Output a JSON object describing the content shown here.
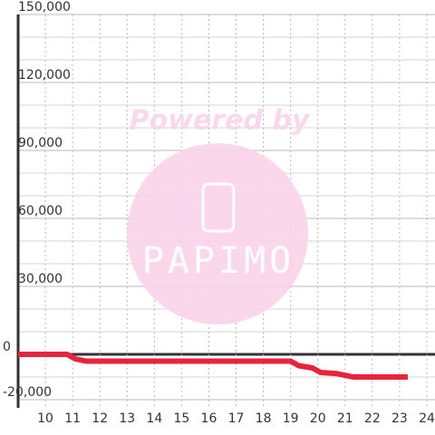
{
  "chart_data": {
    "type": "line",
    "watermark": {
      "text": "Powered by",
      "logo": "PAPIMO"
    },
    "x": [
      9,
      10.8,
      11.1,
      11.5,
      19,
      19.3,
      19.8,
      20.1,
      20.7,
      21.3,
      23.3
    ],
    "series": [
      {
        "color": "#e8243c",
        "values": [
          0,
          0,
          -2000,
          -3000,
          -3000,
          -5000,
          -6000,
          -8000,
          -8500,
          -10000,
          -10000
        ]
      }
    ],
    "xlim": [
      9,
      24.3
    ],
    "xticks": [
      10,
      11,
      12,
      13,
      14,
      15,
      16,
      17,
      18,
      19,
      20,
      21,
      22,
      23,
      24
    ],
    "ylim": [
      -23600,
      150000
    ],
    "yticks": [
      {
        "value": -20000,
        "label": "-20,000"
      },
      0,
      {
        "value": 30000,
        "label": "30,000"
      },
      {
        "value": 60000,
        "label": "60,000"
      },
      {
        "value": 90000,
        "label": "90,000"
      },
      {
        "value": 120000,
        "label": "120,000"
      },
      {
        "value": 150000,
        "label": "150,000"
      }
    ],
    "y_minor_ticks": [
      -10000,
      10000,
      20000,
      40000,
      50000,
      70000,
      80000,
      100000,
      110000,
      130000,
      140000
    ],
    "grid": true
  }
}
